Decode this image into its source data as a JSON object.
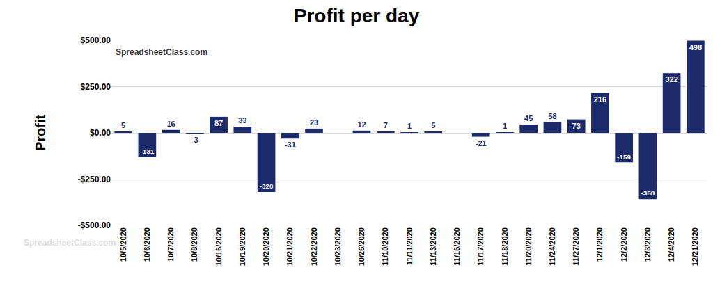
{
  "chart_data": {
    "type": "bar",
    "title": "Profit per day",
    "y_label": "Profit",
    "annotations": [
      "SpreadsheetClass.com",
      "SpreadsheetClass.com"
    ],
    "categories": [
      "10/5/2020",
      "10/6/2020",
      "10/7/2020",
      "10/8/2020",
      "10/16/2020",
      "10/19/2020",
      "10/20/2020",
      "10/21/2020",
      "10/22/2020",
      "10/23/2020",
      "10/26/2020",
      "11/10/2020",
      "11/11/2020",
      "11/13/2020",
      "11/16/2020",
      "11/17/2020",
      "11/18/2020",
      "11/20/2020",
      "11/24/2020",
      "11/27/2020",
      "12/1/2020",
      "12/2/2020",
      "12/3/2020",
      "12/4/2020",
      "12/21/2020"
    ],
    "values": [
      5,
      -131,
      16,
      -3,
      87,
      33,
      -320,
      -31,
      23,
      0,
      12,
      7,
      1,
      5,
      0,
      -21,
      1,
      45,
      58,
      73,
      216,
      -159,
      -358,
      322,
      498
    ],
    "color": "#1b2a6b",
    "ylim": [
      -500,
      500
    ],
    "yticks": [
      {
        "value": -500,
        "label": "-$500.00"
      },
      {
        "value": -250,
        "label": "-$250.00"
      },
      {
        "value": 0,
        "label": "$0.00"
      },
      {
        "value": 250,
        "label": "$250.00"
      },
      {
        "value": 500,
        "label": "$500.00"
      }
    ],
    "grid": true,
    "data_labels": true
  }
}
